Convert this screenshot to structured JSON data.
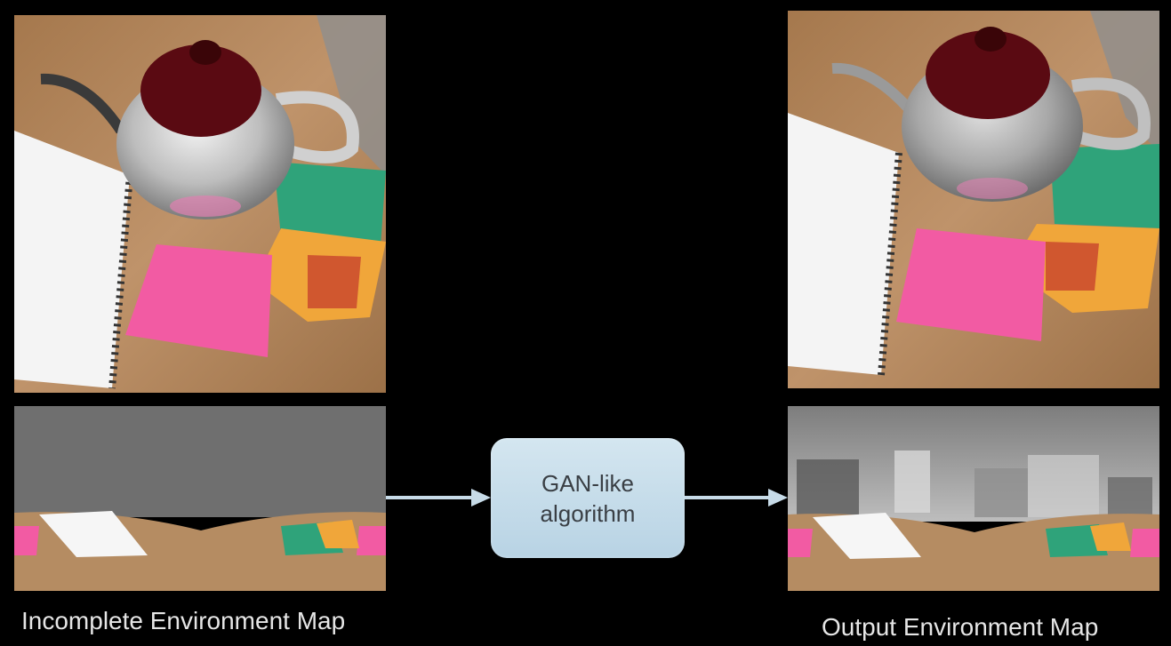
{
  "gan_box": {
    "line1": "GAN-like",
    "line2": "algorithm"
  },
  "captions": {
    "left": "Incomplete Environment Map",
    "right": "Output Environment Map"
  },
  "colors": {
    "arrow": "#c7dbe8",
    "box": "#c6dceb",
    "table": "#b48a5e",
    "sticky_pink": "#f05aa0",
    "teapot_lid": "#5a0a12"
  }
}
